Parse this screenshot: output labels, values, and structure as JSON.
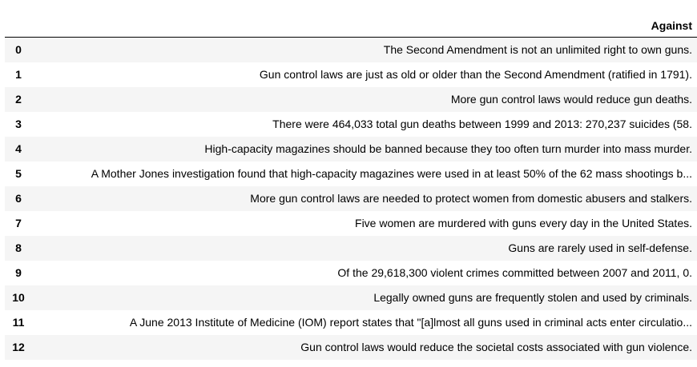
{
  "table": {
    "header": {
      "index": "",
      "column": "Against"
    },
    "rows": [
      {
        "index": "0",
        "text": "The Second Amendment is not an unlimited right to own guns."
      },
      {
        "index": "1",
        "text": "Gun control laws are just as old or older than the Second Amendment (ratified in 1791)."
      },
      {
        "index": "2",
        "text": "More gun control laws would reduce gun deaths."
      },
      {
        "index": "3",
        "text": "There were 464,033 total gun deaths between 1999 and 2013: 270,237 suicides (58."
      },
      {
        "index": "4",
        "text": "High-capacity magazines should be banned because they too often turn murder into mass murder."
      },
      {
        "index": "5",
        "text": "A Mother Jones investigation found that high-capacity magazines were used in at least 50% of the 62 mass shootings b..."
      },
      {
        "index": "6",
        "text": "More gun control laws are needed to protect women from domestic abusers and stalkers."
      },
      {
        "index": "7",
        "text": "Five women are murdered with guns every day in the United States."
      },
      {
        "index": "8",
        "text": "Guns are rarely used in self-defense."
      },
      {
        "index": "9",
        "text": "Of the 29,618,300 violent crimes committed between 2007 and 2011, 0."
      },
      {
        "index": "10",
        "text": "Legally owned guns are frequently stolen and used by criminals."
      },
      {
        "index": "11",
        "text": "A June 2013 Institute of Medicine (IOM) report states that \"[a]lmost all guns used in criminal acts enter circulatio..."
      },
      {
        "index": "12",
        "text": "Gun control laws would reduce the societal costs associated with gun violence."
      }
    ]
  }
}
